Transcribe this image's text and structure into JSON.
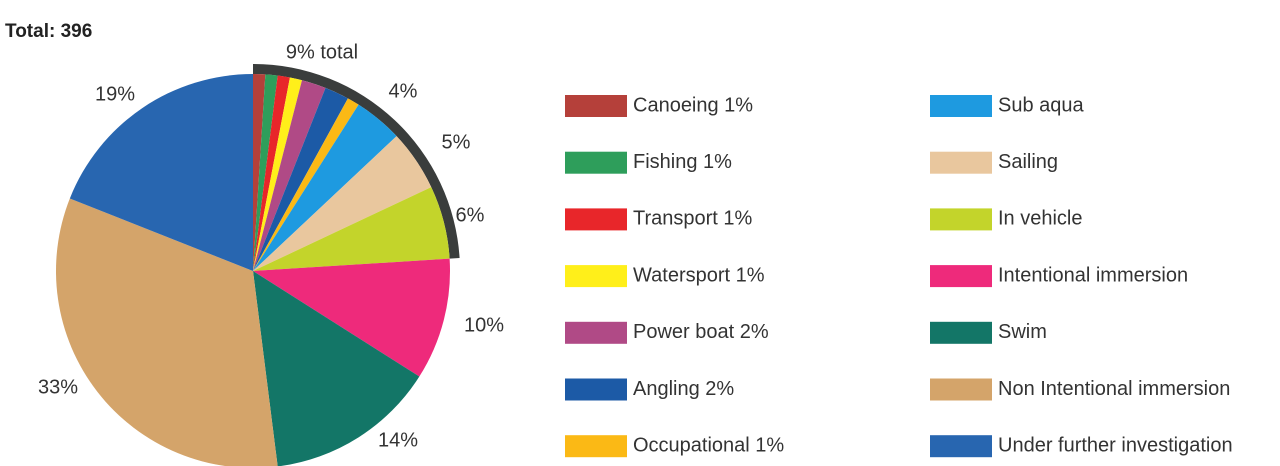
{
  "chart_data": {
    "type": "pie",
    "title": "Total: 396",
    "annotation": "9% total",
    "categories": [
      "Canoeing 1%",
      "Fishing 1%",
      "Transport 1%",
      "Watersport 1%",
      "Power boat 2%",
      "Angling 2%",
      "Occupational 1%",
      "Sub aqua",
      "Sailing",
      "In vehicle",
      "Intentional immersion",
      "Swim",
      "Non Intentional immersion",
      "Under further investigation"
    ],
    "values": [
      1,
      1,
      1,
      1,
      2,
      2,
      1,
      4,
      5,
      6,
      10,
      14,
      33,
      19
    ],
    "value_labels": [
      null,
      null,
      null,
      null,
      null,
      null,
      null,
      "4%",
      "5%",
      "6%",
      "10%",
      "14%",
      "33%",
      "19%"
    ],
    "colors": [
      "#b5403a",
      "#2e9e5b",
      "#e8262a",
      "#ffef1a",
      "#b04a86",
      "#1c5aa6",
      "#fbb915",
      "#1e9ae0",
      "#e9c79e",
      "#c3d42b",
      "#ee2a7b",
      "#137667",
      "#d4a46a",
      "#2866b0"
    ]
  }
}
